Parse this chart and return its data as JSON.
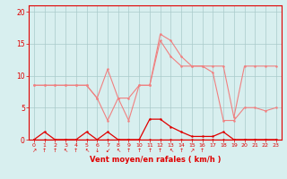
{
  "x": [
    0,
    1,
    2,
    3,
    4,
    5,
    6,
    7,
    8,
    9,
    10,
    11,
    12,
    13,
    14,
    15,
    16,
    17,
    18,
    19,
    20,
    21,
    22,
    23
  ],
  "line_gust1": [
    8.5,
    8.5,
    8.5,
    8.5,
    8.5,
    8.5,
    6.5,
    3.0,
    6.5,
    3.0,
    8.5,
    8.5,
    15.5,
    13.0,
    11.5,
    11.5,
    11.5,
    10.5,
    3.0,
    3.0,
    5.0,
    5.0,
    4.5,
    5.0
  ],
  "line_gust2": [
    8.5,
    8.5,
    8.5,
    8.5,
    8.5,
    8.5,
    6.5,
    11.0,
    6.5,
    6.5,
    8.5,
    8.5,
    16.5,
    15.5,
    13.0,
    11.5,
    11.5,
    11.5,
    11.5,
    3.5,
    11.5,
    11.5,
    11.5,
    11.5
  ],
  "line_mean1": [
    0.0,
    1.2,
    0.0,
    0.0,
    0.0,
    1.2,
    0.0,
    1.2,
    0.0,
    0.0,
    0.0,
    3.2,
    3.2,
    2.0,
    1.2,
    0.5,
    0.5,
    0.5,
    1.2,
    0.0,
    0.0,
    0.0,
    0.0,
    0.0
  ],
  "line_mean2": [
    0.0,
    0.0,
    0.0,
    0.0,
    0.0,
    0.0,
    0.0,
    0.0,
    0.0,
    0.0,
    0.0,
    0.0,
    0.0,
    0.0,
    0.0,
    0.0,
    0.0,
    0.0,
    0.0,
    0.0,
    0.0,
    0.0,
    0.0,
    0.0
  ],
  "color_light": "#f08080",
  "color_dark": "#e00000",
  "bg_color": "#d8efef",
  "grid_color": "#aacaca",
  "xlabel": "Vent moyen/en rafales ( km/h )",
  "yticks": [
    0,
    5,
    10,
    15,
    20
  ],
  "ylim": [
    0,
    21
  ],
  "xlim": [
    -0.5,
    23.5
  ],
  "wind_arrows": [
    "↗",
    "↑",
    "↑",
    "↖",
    "↑",
    "↖",
    "↓",
    "↙",
    "↖",
    "↑",
    "↑",
    "↑",
    "↑",
    "↖",
    "↑",
    "↗",
    "↑",
    "",
    "",
    "",
    "",
    "",
    "",
    ""
  ]
}
